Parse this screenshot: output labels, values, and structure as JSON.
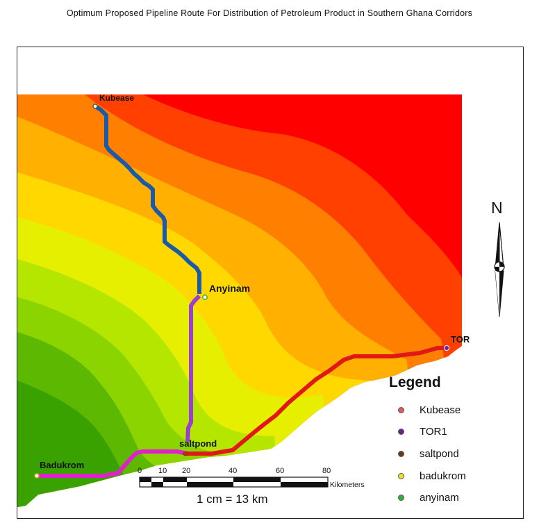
{
  "title": "Optimum Proposed Pipeline Route For Distribution of Petroleum Product in Southern Ghana Corridors",
  "places": {
    "kubease": "Kubease",
    "anyinam": "Anyinam",
    "saltpond": "saltpond",
    "badukrom": "Badukrom",
    "tor": "TOR"
  },
  "legend": {
    "title": "Legend",
    "items": [
      {
        "label": "Kubease",
        "color": "#e05a5a"
      },
      {
        "label": "TOR1",
        "color": "#6a1f9a"
      },
      {
        "label": "saltpond",
        "color": "#6b3a1a"
      },
      {
        "label": "badukrom",
        "color": "#f0e020"
      },
      {
        "label": "anyinam",
        "color": "#2fb43a"
      }
    ]
  },
  "scale_bar": {
    "ticks": [
      "0",
      "10",
      "20",
      "40",
      "60",
      "80"
    ],
    "unit": "Kilometers",
    "ratio": "1 cm = 13 km"
  },
  "north_arrow": {
    "label": "N"
  },
  "route_colors": {
    "kubease_anyinam": "#1a5aa8",
    "anyinam_saltpond": "#9b3fd0",
    "badukrom_saltpond": "#e020c8",
    "saltpond_tor": "#e01818"
  },
  "surface_colors": [
    "#ff0000",
    "#ff4000",
    "#ff8000",
    "#ffb000",
    "#ffd800",
    "#e6ef00",
    "#b4e600",
    "#8cd400",
    "#5cb800",
    "#3aa200"
  ]
}
